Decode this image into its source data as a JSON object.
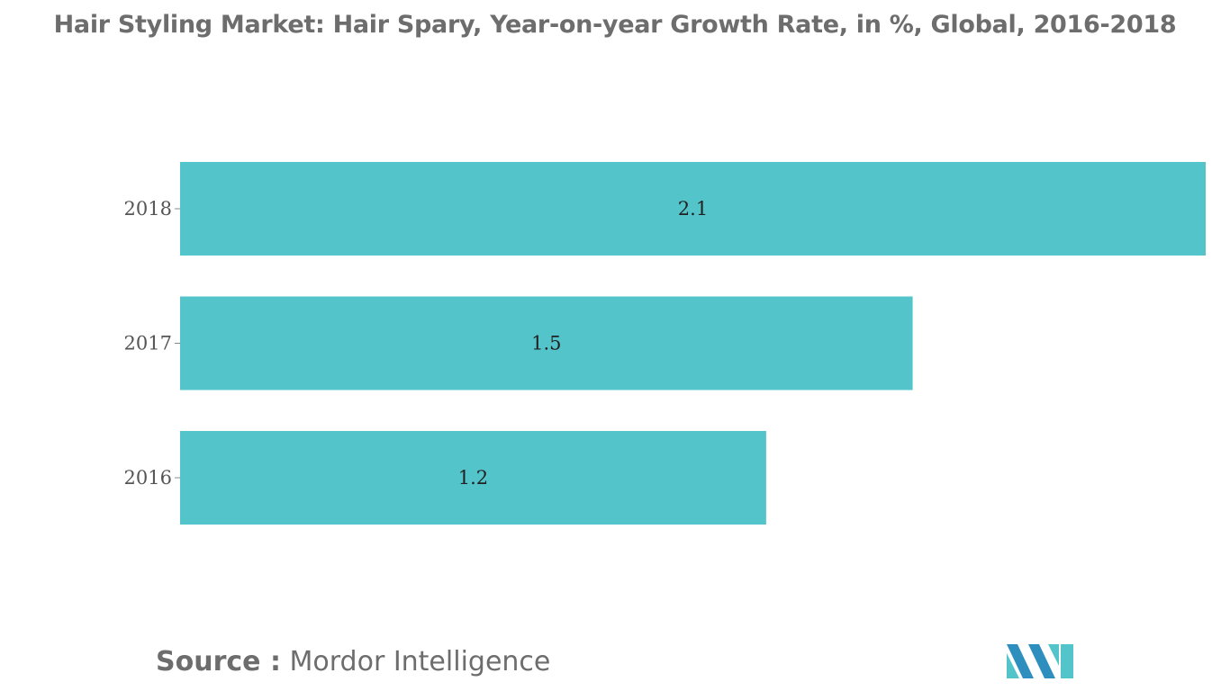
{
  "header": {
    "title": "Hair Styling Market: Hair Spary, Year-on-year Growth Rate, in %, Global, 2016-2018"
  },
  "chart_data": {
    "type": "bar",
    "orientation": "horizontal",
    "title": "Hair Styling Market: Hair Spary, Year-on-year Growth Rate, in %, Global, 2016-2018",
    "categories": [
      "2018",
      "2017",
      "2016"
    ],
    "values": [
      2.1,
      1.5,
      1.2
    ],
    "value_labels": [
      "2.1",
      "1.5",
      "1.2"
    ],
    "xlabel": "",
    "ylabel": "",
    "xlim": [
      0,
      2.1
    ],
    "grid": false,
    "legend": "none",
    "bar_color": "#52c4ca"
  },
  "footer": {
    "source_key": "Source :",
    "source_value": "Mordor Intelligence"
  },
  "logo": {
    "icon": "mordor-intelligence-logo-icon",
    "colors": [
      "#2e8fbf",
      "#52c4ca"
    ]
  }
}
